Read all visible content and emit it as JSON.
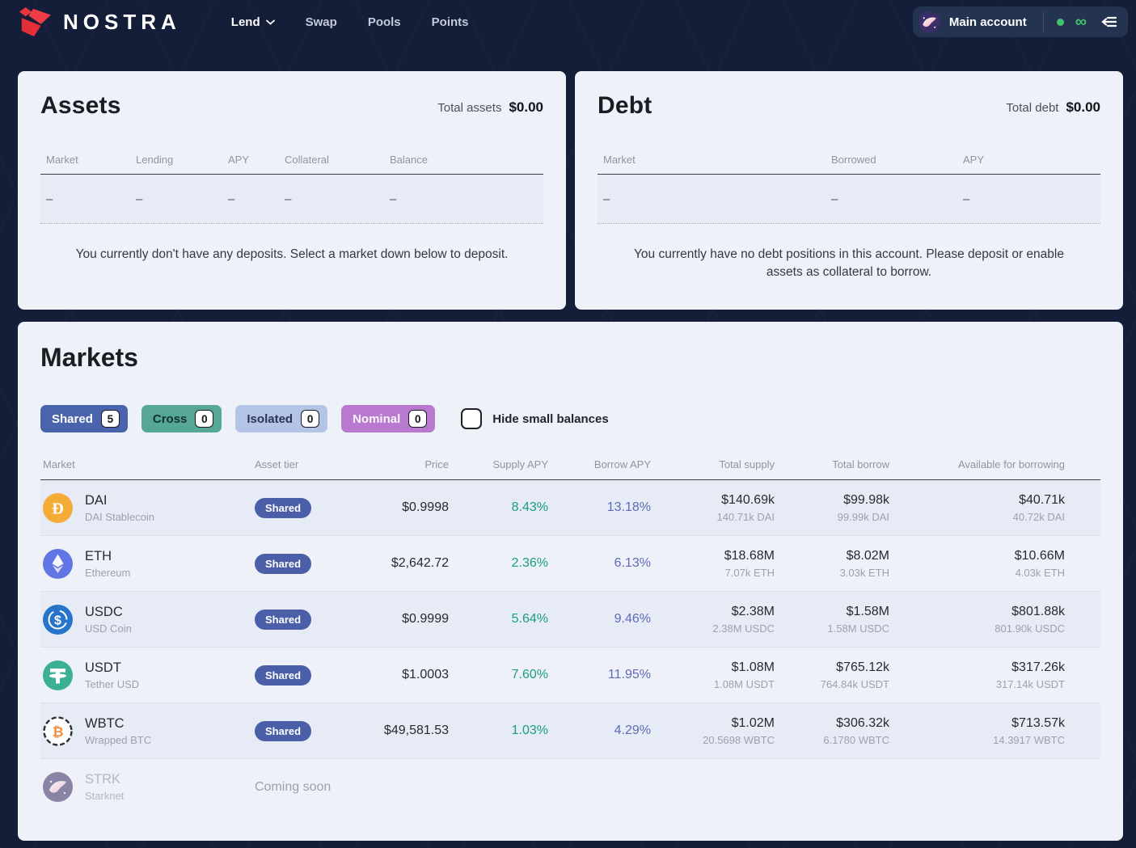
{
  "brand": {
    "name": "NOSTRA"
  },
  "nav": {
    "items": [
      {
        "label": "Lend",
        "active": true,
        "has_dropdown": true
      },
      {
        "label": "Swap",
        "active": false,
        "has_dropdown": false
      },
      {
        "label": "Pools",
        "active": false,
        "has_dropdown": false
      },
      {
        "label": "Points",
        "active": false,
        "has_dropdown": false
      }
    ]
  },
  "account": {
    "label": "Main account",
    "status_color": "#41c36b"
  },
  "assets_card": {
    "title": "Assets",
    "total_label": "Total assets",
    "total_value": "$0.00",
    "columns": [
      "Market",
      "Lending",
      "APY",
      "Collateral",
      "Balance"
    ],
    "empty_dash": "–",
    "empty_message": "You currently don't have any deposits. Select a market down below to deposit."
  },
  "debt_card": {
    "title": "Debt",
    "total_label": "Total debt",
    "total_value": "$0.00",
    "columns": [
      "Market",
      "Borrowed",
      "APY"
    ],
    "empty_dash": "–",
    "empty_message": "You currently have no debt positions in this account. Please deposit or enable assets as collateral to borrow."
  },
  "markets": {
    "title": "Markets",
    "filters": [
      {
        "label": "Shared",
        "count": "5",
        "bg": "#4a63ad",
        "fg": "#ffffff"
      },
      {
        "label": "Cross",
        "count": "0",
        "bg": "#56a795",
        "fg": "#15312b"
      },
      {
        "label": "Isolated",
        "count": "0",
        "bg": "#b4c4e6",
        "fg": "#2b3550"
      },
      {
        "label": "Nominal",
        "count": "0",
        "bg": "#b879ce",
        "fg": "#faf4fc"
      }
    ],
    "hide_small_balances_label": "Hide small balances",
    "columns": [
      "Market",
      "Asset tier",
      "Price",
      "Supply APY",
      "Borrow APY",
      "Total supply",
      "Total borrow",
      "Available for borrowing"
    ],
    "rows": [
      {
        "icon": "dai",
        "symbol": "DAI",
        "name": "DAI Stablecoin",
        "tier": "Shared",
        "price": "$0.9998",
        "supply_apy": "8.43%",
        "borrow_apy": "13.18%",
        "total_supply": "$140.69k",
        "total_supply_sub": "140.71k DAI",
        "total_borrow": "$99.98k",
        "total_borrow_sub": "99.99k DAI",
        "available": "$40.71k",
        "available_sub": "40.72k DAI"
      },
      {
        "icon": "eth",
        "symbol": "ETH",
        "name": "Ethereum",
        "tier": "Shared",
        "price": "$2,642.72",
        "supply_apy": "2.36%",
        "borrow_apy": "6.13%",
        "total_supply": "$18.68M",
        "total_supply_sub": "7.07k ETH",
        "total_borrow": "$8.02M",
        "total_borrow_sub": "3.03k ETH",
        "available": "$10.66M",
        "available_sub": "4.03k ETH"
      },
      {
        "icon": "usdc",
        "symbol": "USDC",
        "name": "USD Coin",
        "tier": "Shared",
        "price": "$0.9999",
        "supply_apy": "5.64%",
        "borrow_apy": "9.46%",
        "total_supply": "$2.38M",
        "total_supply_sub": "2.38M USDC",
        "total_borrow": "$1.58M",
        "total_borrow_sub": "1.58M USDC",
        "available": "$801.88k",
        "available_sub": "801.90k USDC"
      },
      {
        "icon": "usdt",
        "symbol": "USDT",
        "name": "Tether USD",
        "tier": "Shared",
        "price": "$1.0003",
        "supply_apy": "7.60%",
        "borrow_apy": "11.95%",
        "total_supply": "$1.08M",
        "total_supply_sub": "1.08M USDT",
        "total_borrow": "$765.12k",
        "total_borrow_sub": "764.84k USDT",
        "available": "$317.26k",
        "available_sub": "317.14k USDT"
      },
      {
        "icon": "wbtc",
        "symbol": "WBTC",
        "name": "Wrapped BTC",
        "tier": "Shared",
        "price": "$49,581.53",
        "supply_apy": "1.03%",
        "borrow_apy": "4.29%",
        "total_supply": "$1.02M",
        "total_supply_sub": "20.5698 WBTC",
        "total_borrow": "$306.32k",
        "total_borrow_sub": "6.1780 WBTC",
        "available": "$713.57k",
        "available_sub": "14.3917 WBTC"
      },
      {
        "icon": "strk",
        "symbol": "STRK",
        "name": "Starknet",
        "coming_soon": "Coming soon",
        "disabled": true
      }
    ]
  },
  "colors": {
    "page_bg": "#141e38",
    "card_bg": "#eff1f9",
    "row_tint": "#e7ebf5",
    "supply_apy": "#179e7e",
    "borrow_apy": "#5e6bb8",
    "tier_pill": "#4a5fa8",
    "brand_red": "#e8363f"
  }
}
